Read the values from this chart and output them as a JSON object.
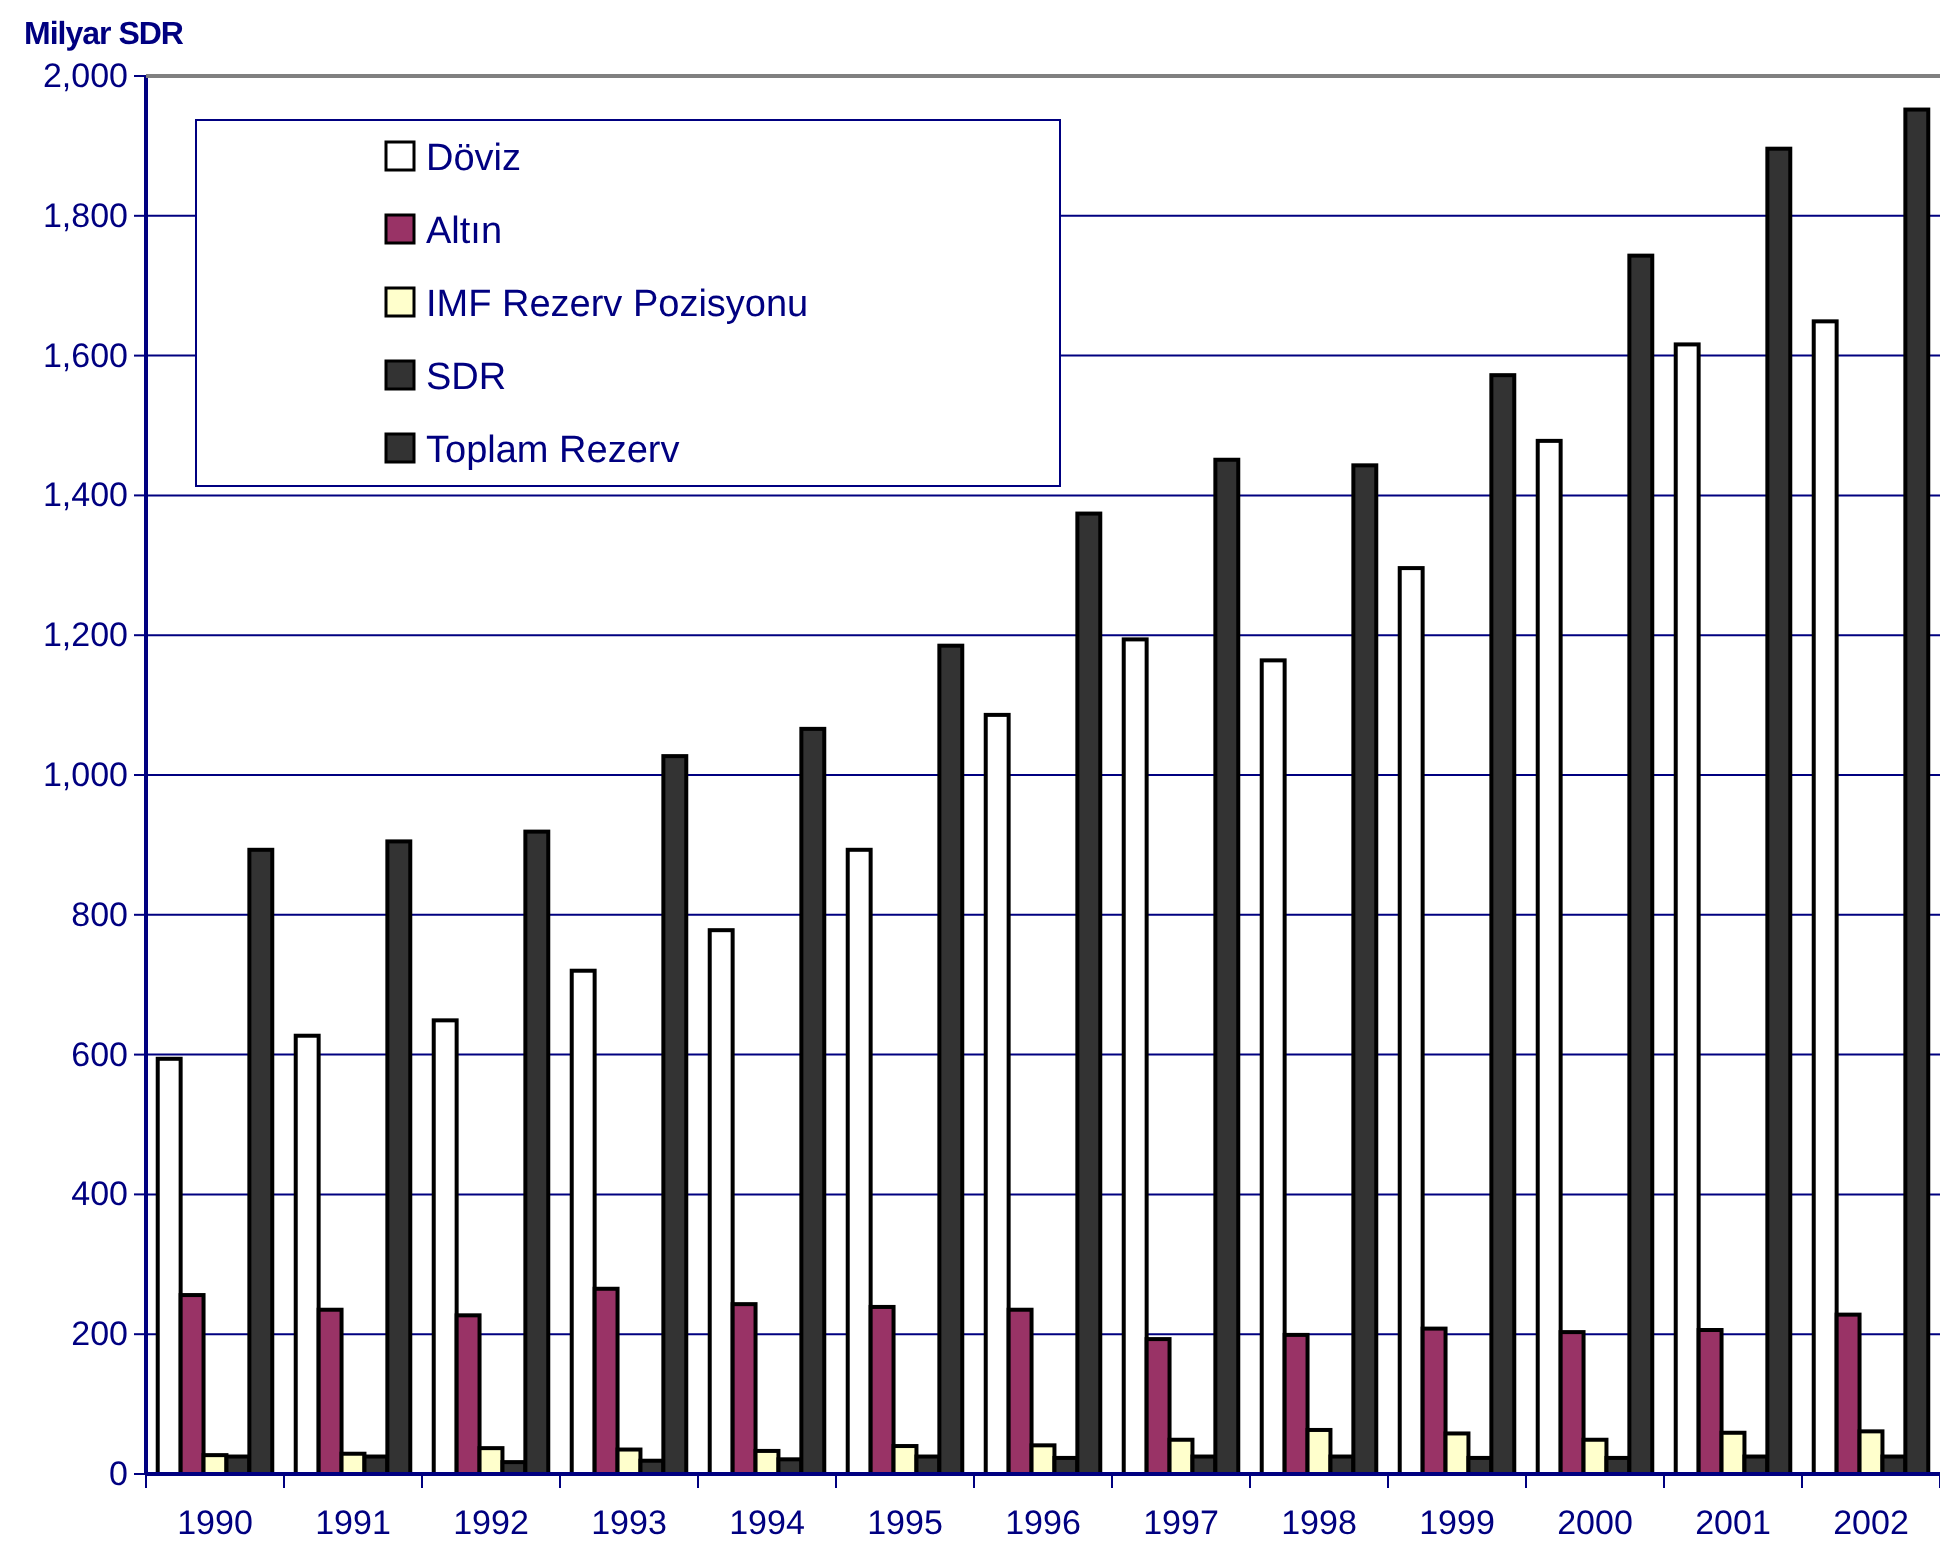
{
  "chart_data": {
    "type": "bar",
    "ylabel": "Milyar SDR",
    "categories": [
      "1990",
      "1991",
      "1992",
      "1993",
      "1994",
      "1995",
      "1996",
      "1997",
      "1998",
      "1999",
      "2000",
      "2001",
      "2002"
    ],
    "series": [
      {
        "name": "Döviz",
        "color": "#ffffff",
        "values": [
          594,
          627,
          649,
          720,
          778,
          893,
          1086,
          1194,
          1164,
          1296,
          1478,
          1616,
          1649
        ]
      },
      {
        "name": "Altın",
        "color": "#993366",
        "values": [
          256,
          235,
          227,
          265,
          243,
          239,
          235,
          193,
          199,
          208,
          203,
          206,
          228
        ]
      },
      {
        "name": "IMF Rezerv Pozisyonu",
        "color": "#ffffcc",
        "values": [
          27,
          29,
          37,
          35,
          33,
          40,
          41,
          49,
          63,
          58,
          49,
          59,
          61
        ]
      },
      {
        "name": "SDR",
        "color": "#333333",
        "values": [
          25,
          25,
          17,
          19,
          21,
          25,
          23,
          25,
          25,
          23,
          23,
          25,
          25
        ]
      },
      {
        "name": "Toplam Rezerv",
        "color": "#333333",
        "values": [
          893,
          905,
          919,
          1027,
          1066,
          1185,
          1374,
          1451,
          1443,
          1572,
          1743,
          1896,
          1952
        ]
      }
    ],
    "ylim": [
      0,
      2000
    ],
    "yticks": [
      {
        "value": 0,
        "label": "0"
      },
      {
        "value": 200,
        "label": "200"
      },
      {
        "value": 400,
        "label": "400"
      },
      {
        "value": 600,
        "label": "600"
      },
      {
        "value": 800,
        "label": "800"
      },
      {
        "value": 1000,
        "label": "1,000"
      },
      {
        "value": 1200,
        "label": "1,200"
      },
      {
        "value": 1400,
        "label": "1,400"
      },
      {
        "value": 1600,
        "label": "1,600"
      },
      {
        "value": 1800,
        "label": "1,800"
      },
      {
        "value": 2000,
        "label": "2,000"
      }
    ],
    "grid": "y",
    "legend": "top left"
  }
}
